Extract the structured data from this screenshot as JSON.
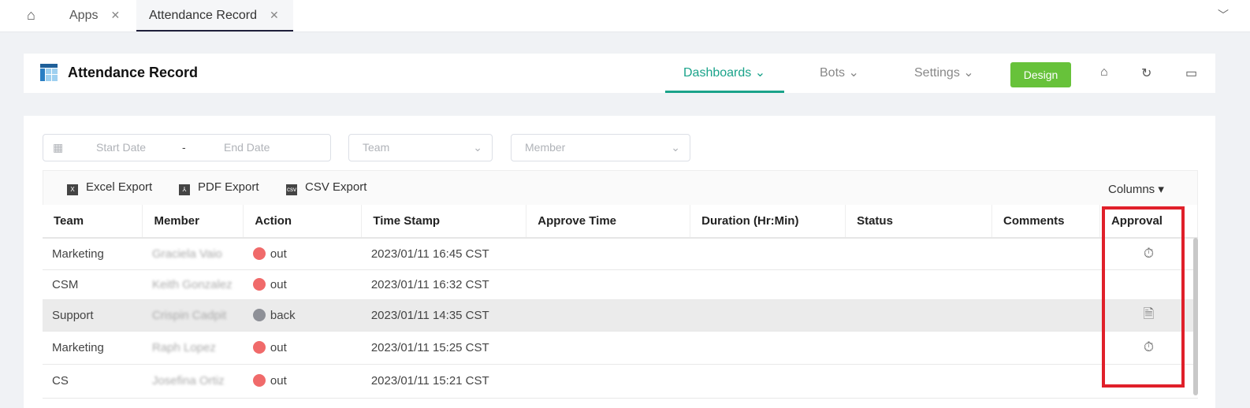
{
  "tabs": [
    {
      "label": "Apps"
    },
    {
      "label": "Attendance Record"
    }
  ],
  "header": {
    "title": "Attendance Record",
    "nav": [
      "Dashboards",
      "Bots",
      "Settings"
    ],
    "design_label": "Design"
  },
  "filters": {
    "start_placeholder": "Start Date",
    "sep": "-",
    "end_placeholder": "End Date",
    "team_placeholder": "Team",
    "member_placeholder": "Member"
  },
  "toolbar": {
    "excel": "Excel Export",
    "pdf": "PDF Export",
    "csv": "CSV Export",
    "columns": "Columns"
  },
  "table": {
    "headers": [
      "Team",
      "Member",
      "Action",
      "Time Stamp",
      "Approve Time",
      "Duration (Hr:Min)",
      "Status",
      "Comments",
      "Approval"
    ],
    "rows": [
      {
        "team": "Marketing",
        "member": "Graciela Vaio",
        "action": "out",
        "time": "2023/01/11 16:45 CST",
        "approval_icon": "stopwatch-icon"
      },
      {
        "team": "CSM",
        "member": "Keith Gonzalez",
        "action": "out",
        "time": "2023/01/11 16:32 CST",
        "approval_icon": ""
      },
      {
        "team": "Support",
        "member": "Crispin Cadpit",
        "action": "back",
        "time": "2023/01/11 14:35 CST",
        "approval_icon": "document-icon"
      },
      {
        "team": "Marketing",
        "member": "Raph Lopez",
        "action": "out",
        "time": "2023/01/11 15:25 CST",
        "approval_icon": "stopwatch-icon"
      },
      {
        "team": "CS",
        "member": "Josefina Ortiz",
        "action": "out",
        "time": "2023/01/11 15:21 CST",
        "approval_icon": ""
      }
    ]
  },
  "colors": {
    "accent": "#1aa38a",
    "design": "#67c23a",
    "out": "#f06a6a",
    "back": "#8e9097",
    "highlight": "#e0202a"
  }
}
